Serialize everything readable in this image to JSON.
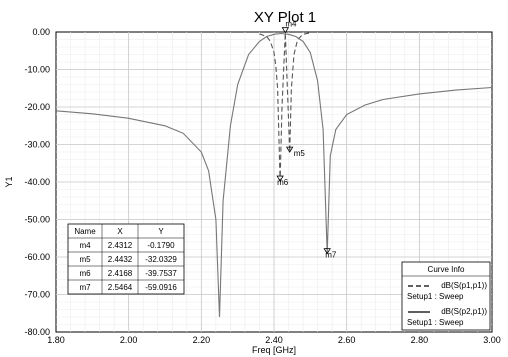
{
  "chart_data": {
    "type": "line",
    "title": "XY Plot 1",
    "xlabel": "Freq [GHz]",
    "ylabel": "Y1",
    "xlim": [
      1.8,
      3.0
    ],
    "ylim": [
      -80,
      0
    ],
    "x_ticks": [
      "1.80",
      "2.00",
      "2.20",
      "2.40",
      "2.60",
      "2.80",
      "3.00"
    ],
    "y_ticks": [
      "0.00",
      "-10.00",
      "-20.00",
      "-30.00",
      "-40.00",
      "-50.00",
      "-60.00",
      "-70.00",
      "-80.00"
    ],
    "grid": true,
    "series": [
      {
        "name": "dB(S(p1,p1))",
        "setup": "Setup1 : Sweep",
        "style": "dashed",
        "color": "#555555",
        "x": [
          2.36,
          2.38,
          2.39,
          2.4,
          2.405,
          2.41,
          2.4168,
          2.422,
          2.4312,
          2.438,
          2.4432,
          2.448,
          2.455,
          2.465,
          2.48,
          2.5
        ],
        "y": [
          -0.5,
          -1.2,
          -2.5,
          -5.5,
          -9,
          -15,
          -39.8,
          -20,
          -0.18,
          -18,
          -32.0,
          -15,
          -6,
          -2,
          -0.6,
          -0.2
        ]
      },
      {
        "name": "dB(S(p2,p1))",
        "setup": "Setup1 : Sweep",
        "style": "solid",
        "color": "#777777",
        "x": [
          1.8,
          1.9,
          2.0,
          2.1,
          2.15,
          2.2,
          2.22,
          2.24,
          2.25,
          2.26,
          2.28,
          2.3,
          2.33,
          2.36,
          2.38,
          2.4,
          2.42,
          2.44,
          2.46,
          2.48,
          2.5,
          2.52,
          2.535,
          2.5464,
          2.555,
          2.57,
          2.6,
          2.65,
          2.7,
          2.8,
          2.9,
          3.0
        ],
        "y": [
          -21,
          -21.8,
          -23,
          -25,
          -27,
          -32,
          -37,
          -50,
          -76,
          -45,
          -25,
          -14,
          -6,
          -2.5,
          -1.2,
          -0.6,
          -0.4,
          -0.6,
          -1.2,
          -2.5,
          -5.5,
          -13,
          -26,
          -59.1,
          -33,
          -26,
          -22,
          -19.5,
          -18,
          -16.5,
          -15.5,
          -14.8
        ]
      }
    ],
    "markers": [
      {
        "name": "m4",
        "x": 2.4312,
        "y": -0.179
      },
      {
        "name": "m5",
        "x": 2.4432,
        "y": -32.0329
      },
      {
        "name": "m6",
        "x": 2.4168,
        "y": -39.7537
      },
      {
        "name": "m7",
        "x": 2.5464,
        "y": -59.0916
      }
    ],
    "marker_table": {
      "headers": [
        "Name",
        "X",
        "Y"
      ],
      "rows": [
        [
          "m4",
          "2.4312",
          "-0.1790"
        ],
        [
          "m5",
          "2.4432",
          "-32.0329"
        ],
        [
          "m6",
          "2.4168",
          "-39.7537"
        ],
        [
          "m7",
          "2.5464",
          "-59.0916"
        ]
      ]
    },
    "legend": {
      "title": "Curve Info",
      "placement": "bottom-right"
    }
  }
}
